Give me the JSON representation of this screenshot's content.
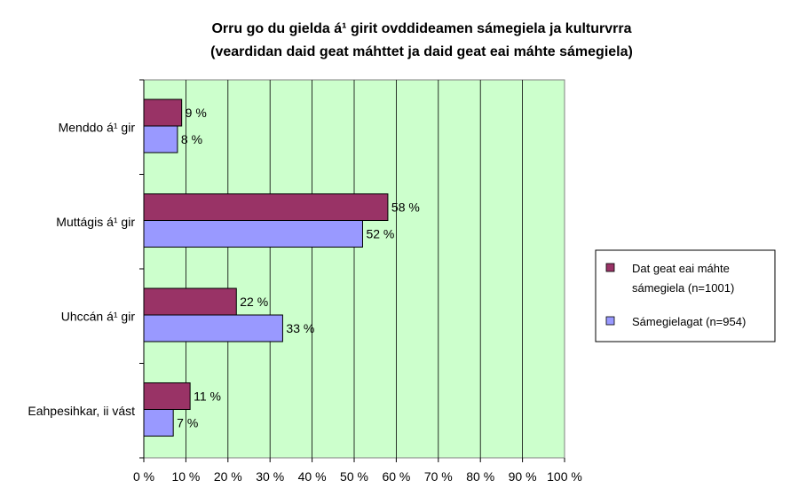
{
  "chart_data": {
    "type": "bar",
    "orientation": "horizontal",
    "title": [
      "Orru go du gielda á¹ girit ovddideamen sámegiela ja kulturvrra",
      "(veardidan daid geat máhttet ja daid geat eai máhte sámegiela)"
    ],
    "categories": [
      "Menddo á¹ gir",
      "Muttágis á¹ gir",
      "Uhccán á¹ gir",
      "Eahpesihkar, ii vást"
    ],
    "series": [
      {
        "name": "Dat geat eai máhte sámegiela (n=1001)",
        "values": [
          9,
          58,
          22,
          11
        ],
        "color": "#993366"
      },
      {
        "name": "Sámegielagat (n=954)",
        "values": [
          8,
          52,
          33,
          7
        ],
        "color": "#9999ff"
      }
    ],
    "data_labels": [
      [
        "9 %",
        "58 %",
        "22 %",
        "11 %"
      ],
      [
        "8 %",
        "52 %",
        "33 %",
        "7 %"
      ]
    ],
    "xlim": [
      0,
      100
    ],
    "x_ticks": [
      "0 %",
      "10 %",
      "20 %",
      "30 %",
      "40 %",
      "50 %",
      "60 %",
      "70 %",
      "80 %",
      "90 %",
      "100 %"
    ],
    "grid": true,
    "plot_background": "#ccffcc",
    "legend_position": "right"
  }
}
